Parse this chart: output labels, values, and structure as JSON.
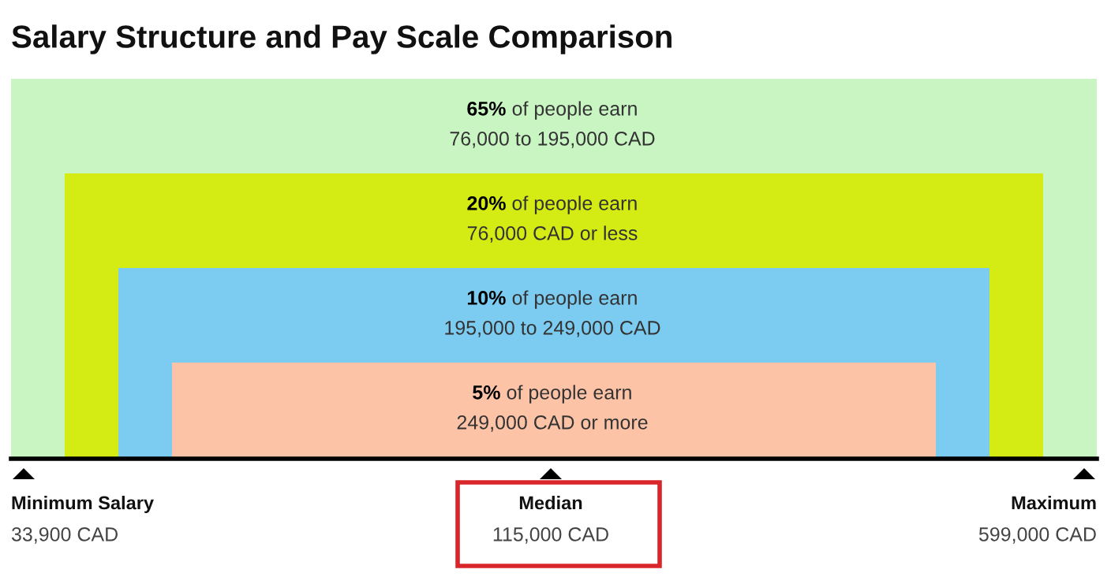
{
  "chart_data": {
    "type": "other",
    "title": "Salary Structure and Pay Scale Comparison",
    "categories": [
      "of people earn\n76,000 to 195,000 CAD",
      "of people earn\n76,000 CAD or less",
      "of people earn\n195,000 to 249,000 CAD",
      "of people earn\n249,000 CAD or more"
    ],
    "values": [
      65,
      20,
      10,
      5
    ],
    "value_labels": [
      "65%",
      "20%",
      "10%",
      "5%"
    ],
    "colors": [
      "#c9f5c3",
      "#d4ec14",
      "#7ccbf0",
      "#fdc3a7"
    ],
    "annotations": [
      "Minimum Salary",
      "33,900 CAD",
      "Median",
      "115,000 CAD",
      "Maximum",
      "599,000 CAD"
    ]
  }
}
